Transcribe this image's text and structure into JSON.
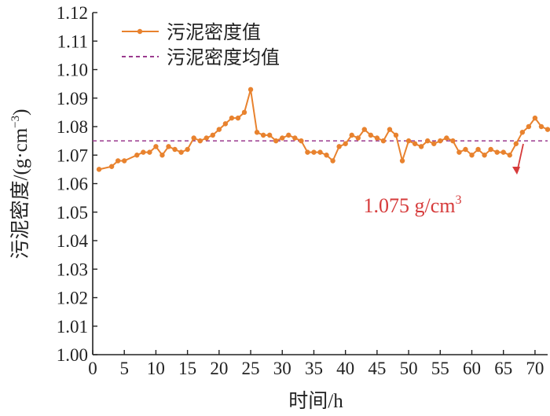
{
  "chart_data": {
    "type": "line",
    "xlabel": "时间/h",
    "ylabel": "污泥密度/(g·cm",
    "ylabel_sup": "−3",
    "ylabel_close": ")",
    "xlim": [
      0,
      72
    ],
    "ylim": [
      1.0,
      1.12
    ],
    "x_ticks": [
      "0",
      "5",
      "10",
      "15",
      "20",
      "25",
      "30",
      "35",
      "40",
      "45",
      "50",
      "55",
      "60",
      "65",
      "70"
    ],
    "y_ticks": [
      "1.00",
      "1.01",
      "1.02",
      "1.03",
      "1.04",
      "1.05",
      "1.06",
      "1.07",
      "1.08",
      "1.09",
      "1.10",
      "1.11",
      "1.12"
    ],
    "grid": false,
    "legend_position": "top-left",
    "series": [
      {
        "name": "污泥密度值",
        "color": "#E8822E",
        "marker": "circle",
        "x": [
          1,
          3,
          4,
          5,
          7,
          8,
          9,
          10,
          11,
          12,
          13,
          14,
          15,
          16,
          17,
          18,
          19,
          20,
          21,
          22,
          23,
          24,
          25,
          26,
          27,
          28,
          29,
          30,
          31,
          32,
          33,
          34,
          35,
          36,
          37,
          38,
          39,
          40,
          41,
          42,
          43,
          44,
          45,
          46,
          47,
          48,
          49,
          50,
          51,
          52,
          53,
          54,
          55,
          56,
          57,
          58,
          59,
          60,
          61,
          62,
          63,
          64,
          65,
          66,
          67,
          68,
          69,
          70,
          71,
          72
        ],
        "y": [
          1.065,
          1.066,
          1.068,
          1.068,
          1.07,
          1.071,
          1.071,
          1.073,
          1.07,
          1.073,
          1.072,
          1.071,
          1.072,
          1.076,
          1.075,
          1.076,
          1.077,
          1.079,
          1.081,
          1.083,
          1.083,
          1.085,
          1.093,
          1.078,
          1.077,
          1.077,
          1.075,
          1.076,
          1.077,
          1.076,
          1.075,
          1.071,
          1.071,
          1.071,
          1.07,
          1.068,
          1.073,
          1.074,
          1.077,
          1.076,
          1.079,
          1.077,
          1.076,
          1.075,
          1.079,
          1.077,
          1.068,
          1.075,
          1.074,
          1.073,
          1.075,
          1.074,
          1.075,
          1.076,
          1.075,
          1.071,
          1.072,
          1.07,
          1.072,
          1.07,
          1.072,
          1.071,
          1.071,
          1.07,
          1.074,
          1.078,
          1.08,
          1.083,
          1.08,
          1.079
        ]
      },
      {
        "name": "污泥密度均值",
        "color": "#9B3A8E",
        "style": "dashed",
        "y_value": 1.075
      }
    ],
    "annotations": [
      {
        "text": "1.075 g/cm",
        "sup": "3",
        "color": "#D63B3B"
      }
    ]
  }
}
